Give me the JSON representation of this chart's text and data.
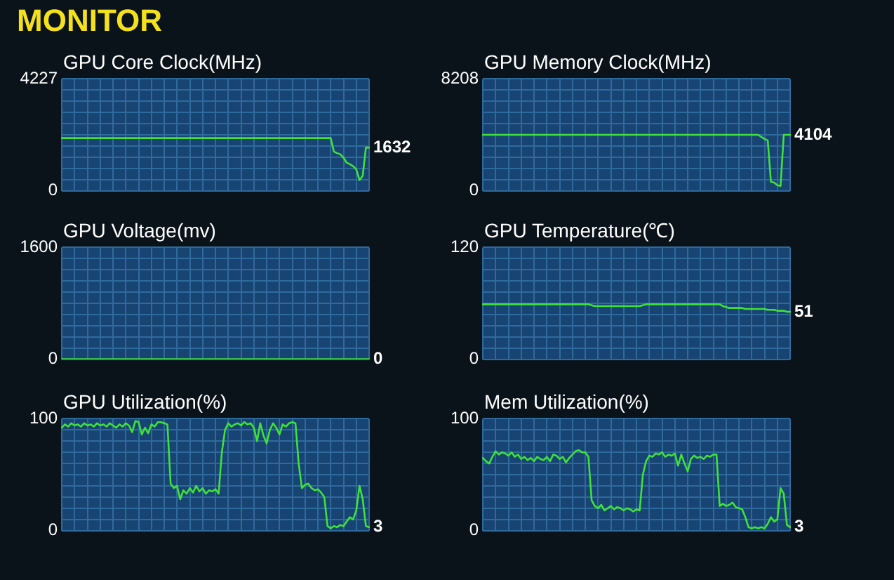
{
  "chart_data": [
    {
      "type": "other",
      "title": "MONITOR"
    },
    {
      "type": "line",
      "title": "GPU Core Clock(MHz)",
      "categories": [
        null,
        null,
        null,
        null,
        null,
        null,
        null,
        null,
        null,
        null,
        null,
        null,
        null,
        null,
        null,
        null,
        null,
        null,
        null,
        null,
        null,
        null,
        null,
        null,
        null,
        null,
        null,
        null,
        null,
        null,
        null,
        null,
        null,
        null,
        null,
        null,
        null,
        null,
        null,
        null,
        null,
        null,
        null,
        null,
        null,
        null,
        null,
        null,
        null,
        null,
        null,
        null,
        null,
        null,
        null,
        null,
        null,
        null,
        null,
        null,
        null,
        null,
        null,
        null,
        null,
        null,
        null,
        null,
        null,
        null,
        null,
        null,
        null,
        null,
        null,
        null,
        null,
        null,
        null,
        null,
        null,
        null,
        null,
        null,
        null,
        null,
        null,
        null,
        null,
        null,
        null,
        null,
        null,
        null,
        null,
        null,
        null
      ],
      "series": [
        {
          "color": "#3fe13a",
          "values": [
            1990,
            1990,
            1990,
            1990,
            1990,
            1990,
            1990,
            1990,
            1990,
            1990,
            1990,
            1990,
            1990,
            1990,
            1990,
            1990,
            1990,
            1990,
            1990,
            1990,
            1990,
            1990,
            1990,
            1990,
            1990,
            1990,
            1990,
            1990,
            1990,
            1990,
            1990,
            1990,
            1990,
            1990,
            1990,
            1990,
            1990,
            1990,
            1990,
            1990,
            1990,
            1990,
            1990,
            1990,
            1990,
            1990,
            1990,
            1990,
            1990,
            1990,
            1990,
            1990,
            1990,
            1990,
            1990,
            1990,
            1990,
            1990,
            1990,
            1990,
            1990,
            1990,
            1990,
            1990,
            1990,
            1990,
            1990,
            1990,
            1990,
            1990,
            1990,
            1990,
            1990,
            1990,
            1990,
            1990,
            1990,
            1990,
            1990,
            1990,
            1990,
            1990,
            1990,
            1990,
            1990,
            1480,
            1420,
            1380,
            1250,
            1060,
            1000,
            930,
            800,
            400,
            560,
            1632,
            1632
          ],
          "value_labels": [
            null,
            null,
            null,
            null,
            null,
            null,
            null,
            null,
            null,
            null,
            null,
            null,
            null,
            null,
            null,
            null,
            null,
            null,
            null,
            null,
            null,
            null,
            null,
            null,
            null,
            null,
            null,
            null,
            null,
            null,
            null,
            null,
            null,
            null,
            null,
            null,
            null,
            null,
            null,
            null,
            null,
            null,
            null,
            null,
            null,
            null,
            null,
            null,
            null,
            null,
            null,
            null,
            null,
            null,
            null,
            null,
            null,
            null,
            null,
            null,
            null,
            null,
            null,
            null,
            null,
            null,
            null,
            null,
            null,
            null,
            null,
            null,
            null,
            null,
            null,
            null,
            null,
            null,
            null,
            null,
            null,
            null,
            null,
            null,
            null,
            null,
            null,
            null,
            null,
            null,
            null,
            null,
            null,
            null,
            null,
            null,
            "1632"
          ]
        }
      ],
      "ylim": [
        0,
        4227
      ],
      "yticks": [
        0,
        {
          "value": 422.7,
          "label": null
        },
        {
          "value": 845.4,
          "label": null
        },
        {
          "value": 1268.1,
          "label": null
        },
        {
          "value": 1690.8,
          "label": null
        },
        {
          "value": 2113.5,
          "label": null
        },
        {
          "value": 2536.2,
          "label": null
        },
        {
          "value": 2958.9,
          "label": null
        },
        {
          "value": 3381.6,
          "label": null
        },
        {
          "value": 3804.3,
          "label": null
        },
        4227
      ],
      "grid": true,
      "tick_labels": "y"
    },
    {
      "type": "line",
      "title": "GPU Memory Clock(MHz)",
      "categories": [
        null,
        null,
        null,
        null,
        null,
        null,
        null,
        null,
        null,
        null,
        null,
        null,
        null,
        null,
        null,
        null,
        null,
        null,
        null,
        null,
        null,
        null,
        null,
        null,
        null,
        null,
        null,
        null,
        null,
        null,
        null,
        null,
        null,
        null,
        null,
        null,
        null,
        null,
        null,
        null,
        null,
        null,
        null,
        null,
        null,
        null,
        null,
        null,
        null,
        null,
        null,
        null,
        null,
        null,
        null,
        null,
        null,
        null,
        null,
        null,
        null,
        null,
        null,
        null,
        null,
        null,
        null,
        null,
        null,
        null,
        null,
        null,
        null,
        null,
        null,
        null,
        null,
        null,
        null,
        null,
        null,
        null,
        null,
        null,
        null,
        null,
        null,
        null,
        null,
        null,
        null,
        null,
        null,
        null,
        null,
        null,
        null
      ],
      "series": [
        {
          "color": "#3fe13a",
          "values": [
            4104,
            4104,
            4104,
            4104,
            4104,
            4104,
            4104,
            4104,
            4104,
            4104,
            4104,
            4104,
            4104,
            4104,
            4104,
            4104,
            4104,
            4104,
            4104,
            4104,
            4104,
            4104,
            4104,
            4104,
            4104,
            4104,
            4104,
            4104,
            4104,
            4104,
            4104,
            4104,
            4104,
            4104,
            4104,
            4104,
            4104,
            4104,
            4104,
            4104,
            4104,
            4104,
            4104,
            4104,
            4104,
            4104,
            4104,
            4104,
            4104,
            4104,
            4104,
            4104,
            4104,
            4104,
            4104,
            4104,
            4104,
            4104,
            4104,
            4104,
            4104,
            4104,
            4104,
            4104,
            4104,
            4104,
            4104,
            4104,
            4104,
            4104,
            4104,
            4104,
            4104,
            4104,
            4104,
            4104,
            4104,
            4104,
            4104,
            4104,
            4104,
            4104,
            4104,
            4104,
            4104,
            4104,
            4104,
            3950,
            3800,
            3700,
            650,
            600,
            400,
            350,
            4104,
            4104,
            4104
          ],
          "value_labels": [
            null,
            null,
            null,
            null,
            null,
            null,
            null,
            null,
            null,
            null,
            null,
            null,
            null,
            null,
            null,
            null,
            null,
            null,
            null,
            null,
            null,
            null,
            null,
            null,
            null,
            null,
            null,
            null,
            null,
            null,
            null,
            null,
            null,
            null,
            null,
            null,
            null,
            null,
            null,
            null,
            null,
            null,
            null,
            null,
            null,
            null,
            null,
            null,
            null,
            null,
            null,
            null,
            null,
            null,
            null,
            null,
            null,
            null,
            null,
            null,
            null,
            null,
            null,
            null,
            null,
            null,
            null,
            null,
            null,
            null,
            null,
            null,
            null,
            null,
            null,
            null,
            null,
            null,
            null,
            null,
            null,
            null,
            null,
            null,
            null,
            null,
            null,
            null,
            null,
            null,
            null,
            null,
            null,
            null,
            null,
            null,
            "4104"
          ]
        }
      ],
      "ylim": [
        0,
        8208
      ],
      "yticks": [
        0,
        {
          "value": 820.8,
          "label": null
        },
        {
          "value": 1641.6,
          "label": null
        },
        {
          "value": 2462.4,
          "label": null
        },
        {
          "value": 3283.2,
          "label": null
        },
        {
          "value": 4104,
          "label": null
        },
        {
          "value": 4924.8,
          "label": null
        },
        {
          "value": 5745.6,
          "label": null
        },
        {
          "value": 6566.4,
          "label": null
        },
        {
          "value": 7387.2,
          "label": null
        },
        8208
      ],
      "grid": true,
      "tick_labels": "y"
    },
    {
      "type": "line",
      "title": "GPU Voltage(mv)",
      "categories": [
        null,
        null,
        null,
        null,
        null,
        null,
        null,
        null,
        null,
        null,
        null,
        null,
        null,
        null,
        null,
        null,
        null,
        null,
        null,
        null,
        null,
        null,
        null,
        null,
        null,
        null,
        null,
        null,
        null,
        null,
        null,
        null,
        null,
        null,
        null,
        null,
        null,
        null,
        null,
        null,
        null,
        null,
        null,
        null,
        null,
        null,
        null,
        null,
        null,
        null,
        null,
        null,
        null,
        null,
        null,
        null,
        null,
        null,
        null,
        null,
        null,
        null,
        null,
        null,
        null,
        null,
        null,
        null,
        null,
        null,
        null,
        null,
        null,
        null,
        null,
        null,
        null,
        null,
        null,
        null,
        null,
        null,
        null,
        null,
        null,
        null,
        null,
        null,
        null,
        null,
        null,
        null,
        null,
        null,
        null,
        null,
        null
      ],
      "series": [
        {
          "color": "#3fe13a",
          "values": [
            0,
            0,
            0,
            0,
            0,
            0,
            0,
            0,
            0,
            0,
            0,
            0,
            0,
            0,
            0,
            0,
            0,
            0,
            0,
            0,
            0,
            0,
            0,
            0,
            0,
            0,
            0,
            0,
            0,
            0,
            0,
            0,
            0,
            0,
            0,
            0,
            0,
            0,
            0,
            0,
            0,
            0,
            0,
            0,
            0,
            0,
            0,
            0,
            0,
            0,
            0,
            0,
            0,
            0,
            0,
            0,
            0,
            0,
            0,
            0,
            0,
            0,
            0,
            0,
            0,
            0,
            0,
            0,
            0,
            0,
            0,
            0,
            0,
            0,
            0,
            0,
            0,
            0,
            0,
            0,
            0,
            0,
            0,
            0,
            0,
            0,
            0,
            0,
            0,
            0,
            0,
            0,
            0,
            0,
            0,
            0,
            0
          ],
          "value_labels": [
            null,
            null,
            null,
            null,
            null,
            null,
            null,
            null,
            null,
            null,
            null,
            null,
            null,
            null,
            null,
            null,
            null,
            null,
            null,
            null,
            null,
            null,
            null,
            null,
            null,
            null,
            null,
            null,
            null,
            null,
            null,
            null,
            null,
            null,
            null,
            null,
            null,
            null,
            null,
            null,
            null,
            null,
            null,
            null,
            null,
            null,
            null,
            null,
            null,
            null,
            null,
            null,
            null,
            null,
            null,
            null,
            null,
            null,
            null,
            null,
            null,
            null,
            null,
            null,
            null,
            null,
            null,
            null,
            null,
            null,
            null,
            null,
            null,
            null,
            null,
            null,
            null,
            null,
            null,
            null,
            null,
            null,
            null,
            null,
            null,
            null,
            null,
            null,
            null,
            null,
            null,
            null,
            null,
            null,
            null,
            null,
            "0"
          ]
        }
      ],
      "ylim": [
        0,
        1600
      ],
      "yticks": [
        0,
        {
          "value": 160,
          "label": null
        },
        {
          "value": 320,
          "label": null
        },
        {
          "value": 480,
          "label": null
        },
        {
          "value": 640,
          "label": null
        },
        {
          "value": 800,
          "label": null
        },
        {
          "value": 960,
          "label": null
        },
        {
          "value": 1120,
          "label": null
        },
        {
          "value": 1280,
          "label": null
        },
        {
          "value": 1440,
          "label": null
        },
        1600
      ],
      "grid": true,
      "tick_labels": "y"
    },
    {
      "type": "line",
      "title": "GPU Temperature(℃)",
      "categories": [
        null,
        null,
        null,
        null,
        null,
        null,
        null,
        null,
        null,
        null,
        null,
        null,
        null,
        null,
        null,
        null,
        null,
        null,
        null,
        null,
        null,
        null,
        null,
        null,
        null,
        null,
        null,
        null,
        null,
        null,
        null,
        null,
        null,
        null,
        null,
        null,
        null,
        null,
        null,
        null,
        null,
        null,
        null,
        null,
        null,
        null,
        null,
        null,
        null,
        null,
        null,
        null,
        null,
        null,
        null,
        null,
        null,
        null,
        null,
        null,
        null,
        null,
        null,
        null,
        null,
        null,
        null,
        null,
        null,
        null,
        null,
        null,
        null,
        null,
        null,
        null,
        null,
        null,
        null,
        null,
        null,
        null,
        null,
        null,
        null,
        null,
        null,
        null,
        null,
        null,
        null,
        null,
        null,
        null,
        null,
        null,
        null
      ],
      "series": [
        {
          "color": "#3fe13a",
          "values": [
            59,
            59,
            59,
            59,
            59,
            59,
            59,
            59,
            59,
            59,
            59,
            59,
            59,
            59,
            59,
            59,
            59,
            59,
            59,
            59,
            59,
            59,
            59,
            59,
            59,
            59,
            59,
            59,
            59,
            59,
            59,
            59,
            59,
            59,
            58,
            57,
            57,
            57,
            57,
            57,
            57,
            57,
            57,
            57,
            57,
            57,
            57,
            57,
            57,
            57,
            58,
            59,
            59,
            59,
            59,
            59,
            59,
            59,
            59,
            59,
            59,
            59,
            59,
            59,
            59,
            59,
            59,
            59,
            59,
            59,
            59,
            59,
            59,
            59,
            59,
            57,
            56,
            55,
            55,
            55,
            55,
            55,
            54,
            54,
            54,
            54,
            54,
            54,
            54,
            53,
            53,
            53,
            52,
            52,
            52,
            51,
            51
          ],
          "value_labels": [
            null,
            null,
            null,
            null,
            null,
            null,
            null,
            null,
            null,
            null,
            null,
            null,
            null,
            null,
            null,
            null,
            null,
            null,
            null,
            null,
            null,
            null,
            null,
            null,
            null,
            null,
            null,
            null,
            null,
            null,
            null,
            null,
            null,
            null,
            null,
            null,
            null,
            null,
            null,
            null,
            null,
            null,
            null,
            null,
            null,
            null,
            null,
            null,
            null,
            null,
            null,
            null,
            null,
            null,
            null,
            null,
            null,
            null,
            null,
            null,
            null,
            null,
            null,
            null,
            null,
            null,
            null,
            null,
            null,
            null,
            null,
            null,
            null,
            null,
            null,
            null,
            null,
            null,
            null,
            null,
            null,
            null,
            null,
            null,
            null,
            null,
            null,
            null,
            null,
            null,
            null,
            null,
            null,
            null,
            null,
            null,
            "51"
          ]
        }
      ],
      "ylim": [
        0,
        120
      ],
      "yticks": [
        0,
        {
          "value": 12,
          "label": null
        },
        {
          "value": 24,
          "label": null
        },
        {
          "value": 36,
          "label": null
        },
        {
          "value": 48,
          "label": null
        },
        {
          "value": 60,
          "label": null
        },
        {
          "value": 72,
          "label": null
        },
        {
          "value": 84,
          "label": null
        },
        {
          "value": 96,
          "label": null
        },
        {
          "value": 108,
          "label": null
        },
        120
      ],
      "grid": true,
      "tick_labels": "y"
    },
    {
      "type": "line",
      "title": "GPU Utilization(%)",
      "categories": [
        null,
        null,
        null,
        null,
        null,
        null,
        null,
        null,
        null,
        null,
        null,
        null,
        null,
        null,
        null,
        null,
        null,
        null,
        null,
        null,
        null,
        null,
        null,
        null,
        null,
        null,
        null,
        null,
        null,
        null,
        null,
        null,
        null,
        null,
        null,
        null,
        null,
        null,
        null,
        null,
        null,
        null,
        null,
        null,
        null,
        null,
        null,
        null,
        null,
        null,
        null,
        null,
        null,
        null,
        null,
        null,
        null,
        null,
        null,
        null,
        null,
        null,
        null,
        null,
        null,
        null,
        null,
        null,
        null,
        null,
        null,
        null,
        null,
        null,
        null,
        null,
        null,
        null,
        null,
        null,
        null,
        null,
        null,
        null,
        null,
        null,
        null,
        null,
        null,
        null,
        null,
        null,
        null,
        null,
        null,
        null,
        null
      ],
      "series": [
        {
          "color": "#3fe13a",
          "values": [
            92,
            95,
            93,
            96,
            94,
            95,
            93,
            96,
            94,
            95,
            93,
            96,
            94,
            95,
            93,
            96,
            94,
            92,
            95,
            93,
            96,
            94,
            88,
            98,
            97,
            86,
            92,
            87,
            95,
            93,
            97,
            97,
            96,
            95,
            42,
            38,
            40,
            28,
            36,
            33,
            38,
            34,
            40,
            35,
            38,
            33,
            36,
            35,
            37,
            33,
            70,
            90,
            96,
            93,
            95,
            96,
            94,
            97,
            95,
            96,
            92,
            80,
            96,
            85,
            78,
            90,
            96,
            92,
            86,
            95,
            93,
            96,
            97,
            96,
            60,
            38,
            41,
            42,
            38,
            36,
            37,
            34,
            30,
            4,
            2,
            4,
            3,
            5,
            4,
            8,
            12,
            10,
            18,
            40,
            28,
            4,
            3
          ],
          "value_labels": [
            null,
            null,
            null,
            null,
            null,
            null,
            null,
            null,
            null,
            null,
            null,
            null,
            null,
            null,
            null,
            null,
            null,
            null,
            null,
            null,
            null,
            null,
            null,
            null,
            null,
            null,
            null,
            null,
            null,
            null,
            null,
            null,
            null,
            null,
            null,
            null,
            null,
            null,
            null,
            null,
            null,
            null,
            null,
            null,
            null,
            null,
            null,
            null,
            null,
            null,
            null,
            null,
            null,
            null,
            null,
            null,
            null,
            null,
            null,
            null,
            null,
            null,
            null,
            null,
            null,
            null,
            null,
            null,
            null,
            null,
            null,
            null,
            null,
            null,
            null,
            null,
            null,
            null,
            null,
            null,
            null,
            null,
            null,
            null,
            null,
            null,
            null,
            null,
            null,
            null,
            null,
            null,
            null,
            null,
            null,
            null,
            "3"
          ]
        }
      ],
      "ylim": [
        0,
        100
      ],
      "yticks": [
        0,
        {
          "value": 10,
          "label": null
        },
        {
          "value": 20,
          "label": null
        },
        {
          "value": 30,
          "label": null
        },
        {
          "value": 40,
          "label": null
        },
        {
          "value": 50,
          "label": null
        },
        {
          "value": 60,
          "label": null
        },
        {
          "value": 70,
          "label": null
        },
        {
          "value": 80,
          "label": null
        },
        {
          "value": 90,
          "label": null
        },
        100
      ],
      "grid": true,
      "tick_labels": "y"
    },
    {
      "type": "line",
      "title": "Mem Utilization(%)",
      "categories": [
        null,
        null,
        null,
        null,
        null,
        null,
        null,
        null,
        null,
        null,
        null,
        null,
        null,
        null,
        null,
        null,
        null,
        null,
        null,
        null,
        null,
        null,
        null,
        null,
        null,
        null,
        null,
        null,
        null,
        null,
        null,
        null,
        null,
        null,
        null,
        null,
        null,
        null,
        null,
        null,
        null,
        null,
        null,
        null,
        null,
        null,
        null,
        null,
        null,
        null,
        null,
        null,
        null,
        null,
        null,
        null,
        null,
        null,
        null,
        null,
        null,
        null,
        null,
        null,
        null,
        null,
        null,
        null,
        null,
        null,
        null,
        null,
        null,
        null,
        null,
        null,
        null,
        null,
        null,
        null,
        null,
        null,
        null,
        null,
        null,
        null,
        null,
        null,
        null,
        null,
        null,
        null,
        null,
        null,
        null,
        null,
        null
      ],
      "series": [
        {
          "color": "#3fe13a",
          "values": [
            65,
            62,
            60,
            66,
            71,
            68,
            70,
            69,
            67,
            70,
            66,
            68,
            64,
            66,
            63,
            65,
            62,
            66,
            64,
            63,
            66,
            62,
            68,
            67,
            64,
            66,
            61,
            65,
            68,
            71,
            72,
            70,
            70,
            66,
            27,
            22,
            20,
            23,
            18,
            20,
            22,
            19,
            21,
            20,
            18,
            20,
            19,
            17,
            19,
            18,
            50,
            62,
            67,
            66,
            69,
            68,
            70,
            66,
            68,
            67,
            69,
            58,
            68,
            60,
            53,
            64,
            67,
            65,
            66,
            64,
            67,
            66,
            68,
            68,
            22,
            24,
            22,
            23,
            25,
            21,
            20,
            19,
            12,
            3,
            2,
            3,
            2,
            3,
            2,
            6,
            12,
            8,
            10,
            38,
            33,
            5,
            3
          ],
          "value_labels": [
            null,
            null,
            null,
            null,
            null,
            null,
            null,
            null,
            null,
            null,
            null,
            null,
            null,
            null,
            null,
            null,
            null,
            null,
            null,
            null,
            null,
            null,
            null,
            null,
            null,
            null,
            null,
            null,
            null,
            null,
            null,
            null,
            null,
            null,
            null,
            null,
            null,
            null,
            null,
            null,
            null,
            null,
            null,
            null,
            null,
            null,
            null,
            null,
            null,
            null,
            null,
            null,
            null,
            null,
            null,
            null,
            null,
            null,
            null,
            null,
            null,
            null,
            null,
            null,
            null,
            null,
            null,
            null,
            null,
            null,
            null,
            null,
            null,
            null,
            null,
            null,
            null,
            null,
            null,
            null,
            null,
            null,
            null,
            null,
            null,
            null,
            null,
            null,
            null,
            null,
            null,
            null,
            null,
            null,
            null,
            null,
            "3"
          ]
        }
      ],
      "ylim": [
        0,
        100
      ],
      "yticks": [
        0,
        {
          "value": 10,
          "label": null
        },
        {
          "value": 20,
          "label": null
        },
        {
          "value": 30,
          "label": null
        },
        {
          "value": 40,
          "label": null
        },
        {
          "value": 50,
          "label": null
        },
        {
          "value": 60,
          "label": null
        },
        {
          "value": 70,
          "label": null
        },
        {
          "value": 80,
          "label": null
        },
        {
          "value": 90,
          "label": null
        },
        100
      ],
      "grid": true,
      "tick_labels": "y"
    }
  ]
}
